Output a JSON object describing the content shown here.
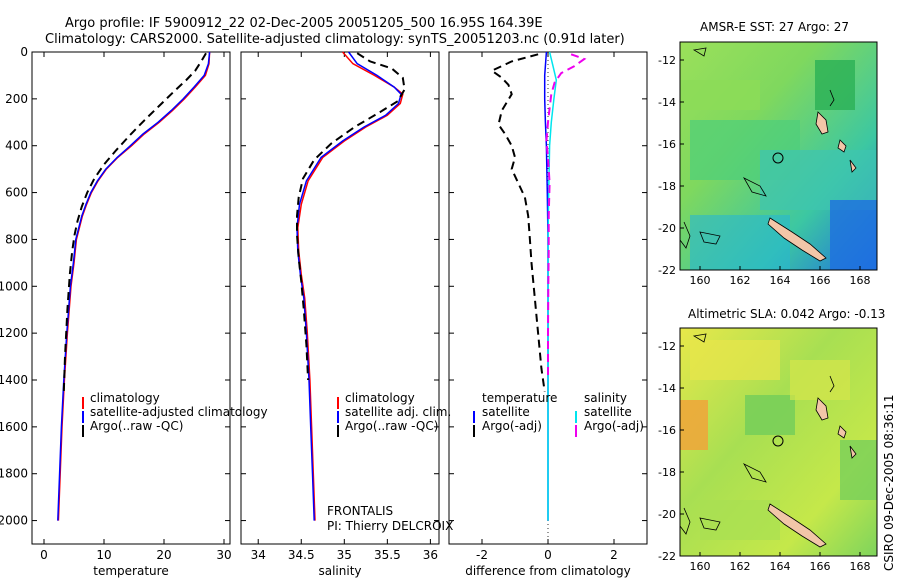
{
  "header": {
    "line1": "Argo profile: IF 5900912_22 02-Dec-2005 20051205_500 16.95S 164.39E",
    "line2": "Climatology: CARS2000. Satellite-adjusted climatology: synTS_20051203.nc (0.91d later)"
  },
  "colors": {
    "climatology": "#ff0000",
    "satellite": "#0000ff",
    "argo": "#000000",
    "sat_diff_temp": "#0000ff",
    "sat_diff_sal": "#00e5ee",
    "argo_diff_sal": "#ee00ee"
  },
  "chart_data": [
    {
      "type": "line",
      "xlabel": "temperature",
      "ylabel": "",
      "xlim": [
        -2,
        31
      ],
      "ylim": [
        2100,
        0
      ],
      "xticks": [
        0,
        10,
        20,
        30
      ],
      "yticks": [
        0,
        200,
        400,
        600,
        800,
        1000,
        1200,
        1400,
        1600,
        1800,
        2000
      ],
      "legend": [
        "climatology",
        "satellite-adjusted climatology",
        "Argo(..raw -QC)"
      ],
      "series": [
        {
          "name": "climatology",
          "color": "#ff0000",
          "dash": "solid",
          "width": 1.5,
          "points": [
            [
              27.6,
              0
            ],
            [
              27.5,
              50
            ],
            [
              26.9,
              100
            ],
            [
              25.2,
              150
            ],
            [
              23.4,
              200
            ],
            [
              21.4,
              250
            ],
            [
              19.2,
              300
            ],
            [
              16.7,
              350
            ],
            [
              14.6,
              400
            ],
            [
              12.3,
              450
            ],
            [
              10.4,
              500
            ],
            [
              9.0,
              550
            ],
            [
              7.9,
              600
            ],
            [
              7.1,
              650
            ],
            [
              6.4,
              700
            ],
            [
              5.9,
              750
            ],
            [
              5.4,
              800
            ],
            [
              5.0,
              900
            ],
            [
              4.5,
              1000
            ],
            [
              3.9,
              1200
            ],
            [
              3.4,
              1400
            ],
            [
              3.0,
              1600
            ],
            [
              2.7,
              1800
            ],
            [
              2.4,
              2000
            ]
          ]
        },
        {
          "name": "satellite-adjusted climatology",
          "color": "#0000ff",
          "dash": "solid",
          "width": 1.5,
          "points": [
            [
              27.6,
              0
            ],
            [
              27.4,
              50
            ],
            [
              26.7,
              100
            ],
            [
              25.0,
              150
            ],
            [
              23.2,
              200
            ],
            [
              21.2,
              250
            ],
            [
              19.0,
              300
            ],
            [
              16.5,
              350
            ],
            [
              14.4,
              400
            ],
            [
              12.2,
              450
            ],
            [
              10.3,
              500
            ],
            [
              8.9,
              550
            ],
            [
              7.8,
              600
            ],
            [
              7.0,
              650
            ],
            [
              6.3,
              700
            ],
            [
              5.8,
              750
            ],
            [
              5.3,
              800
            ],
            [
              4.9,
              900
            ],
            [
              4.4,
              1000
            ],
            [
              3.8,
              1200
            ],
            [
              3.3,
              1400
            ],
            [
              2.9,
              1600
            ],
            [
              2.6,
              1800
            ],
            [
              2.3,
              2000
            ]
          ]
        },
        {
          "name": "Argo(..raw -QC)",
          "color": "#000000",
          "dash": "8,5",
          "width": 2,
          "points": [
            [
              27.0,
              5
            ],
            [
              26.2,
              40
            ],
            [
              25.2,
              80
            ],
            [
              23.7,
              120
            ],
            [
              21.6,
              170
            ],
            [
              19.2,
              230
            ],
            [
              16.8,
              290
            ],
            [
              14.5,
              350
            ],
            [
              12.0,
              420
            ],
            [
              10.0,
              480
            ],
            [
              8.4,
              540
            ],
            [
              7.2,
              600
            ],
            [
              6.3,
              660
            ],
            [
              5.6,
              720
            ],
            [
              5.1,
              780
            ],
            [
              4.7,
              850
            ],
            [
              4.3,
              950
            ],
            [
              3.9,
              1100
            ],
            [
              3.5,
              1300
            ],
            [
              3.3,
              1450
            ]
          ]
        }
      ]
    },
    {
      "type": "line",
      "xlabel": "salinity",
      "ylabel": "",
      "xlim": [
        33.8,
        36.1
      ],
      "ylim": [
        2100,
        0
      ],
      "xticks": [
        34,
        34.5,
        35,
        35.5,
        36
      ],
      "legend": [
        "climatology",
        "satellite adj. clim.",
        "Argo(..raw -QC)"
      ],
      "annotation": [
        "FRONTALIS",
        "PI: Thierry DELCROIX"
      ],
      "series": [
        {
          "name": "climatology",
          "color": "#ff0000",
          "dash": "solid",
          "width": 1.5,
          "points": [
            [
              34.98,
              0
            ],
            [
              35.1,
              50
            ],
            [
              35.35,
              100
            ],
            [
              35.58,
              150
            ],
            [
              35.68,
              180
            ],
            [
              35.65,
              220
            ],
            [
              35.5,
              270
            ],
            [
              35.25,
              320
            ],
            [
              35.0,
              380
            ],
            [
              34.75,
              450
            ],
            [
              34.58,
              550
            ],
            [
              34.5,
              650
            ],
            [
              34.46,
              750
            ],
            [
              34.47,
              850
            ],
            [
              34.5,
              950
            ],
            [
              34.54,
              1050
            ],
            [
              34.57,
              1200
            ],
            [
              34.6,
              1400
            ],
            [
              34.62,
              1600
            ],
            [
              34.64,
              1800
            ],
            [
              34.66,
              2000
            ]
          ]
        },
        {
          "name": "satellite adj. clim.",
          "color": "#0000ff",
          "dash": "solid",
          "width": 1.5,
          "points": [
            [
              35.05,
              0
            ],
            [
              35.15,
              50
            ],
            [
              35.38,
              100
            ],
            [
              35.58,
              150
            ],
            [
              35.66,
              180
            ],
            [
              35.63,
              220
            ],
            [
              35.48,
              270
            ],
            [
              35.23,
              320
            ],
            [
              34.98,
              380
            ],
            [
              34.73,
              450
            ],
            [
              34.56,
              550
            ],
            [
              34.48,
              650
            ],
            [
              34.45,
              750
            ],
            [
              34.46,
              850
            ],
            [
              34.49,
              950
            ],
            [
              34.53,
              1050
            ],
            [
              34.56,
              1200
            ],
            [
              34.59,
              1400
            ],
            [
              34.61,
              1600
            ],
            [
              34.63,
              1800
            ],
            [
              34.65,
              2000
            ]
          ]
        },
        {
          "name": "Argo(..raw -QC)",
          "color": "#000000",
          "dash": "8,5",
          "width": 2,
          "points": [
            [
              35.15,
              5
            ],
            [
              35.3,
              40
            ],
            [
              35.55,
              70
            ],
            [
              35.68,
              110
            ],
            [
              35.7,
              160
            ],
            [
              35.62,
              210
            ],
            [
              35.4,
              260
            ],
            [
              35.12,
              320
            ],
            [
              34.85,
              390
            ],
            [
              34.65,
              460
            ],
            [
              34.52,
              540
            ],
            [
              34.47,
              620
            ],
            [
              34.45,
              700
            ],
            [
              34.45,
              780
            ],
            [
              34.47,
              880
            ],
            [
              34.5,
              980
            ],
            [
              34.53,
              1100
            ],
            [
              34.56,
              1250
            ],
            [
              34.58,
              1400
            ]
          ]
        }
      ]
    },
    {
      "type": "line",
      "xlabel": "difference from climatology",
      "ylabel": "",
      "xlim": [
        -3,
        3
      ],
      "ylim": [
        2100,
        0
      ],
      "xticks": [
        -2,
        0,
        2
      ],
      "legend": [
        "temperature",
        "salinity",
        "satellite",
        "satellite",
        "Argo(-adj)",
        "Argo(-adj)"
      ],
      "series": [
        {
          "name": "satellite",
          "color": "#0000ff",
          "dash": "solid",
          "width": 1.5,
          "points": [
            [
              -0.05,
              0
            ],
            [
              -0.1,
              100
            ],
            [
              -0.1,
              200
            ],
            [
              -0.08,
              300
            ],
            [
              -0.05,
              400
            ],
            [
              -0.02,
              600
            ],
            [
              0.0,
              800
            ],
            [
              0.0,
              1000
            ],
            [
              0.0,
              1500
            ],
            [
              0.0,
              2000
            ]
          ]
        },
        {
          "name": "satellite",
          "color": "#00e5ee",
          "dash": "solid",
          "width": 1.5,
          "points": [
            [
              0.05,
              0
            ],
            [
              0.15,
              60
            ],
            [
              0.25,
              120
            ],
            [
              0.18,
              200
            ],
            [
              0.1,
              300
            ],
            [
              0.05,
              400
            ],
            [
              0.02,
              600
            ],
            [
              0.0,
              800
            ],
            [
              0.0,
              1000
            ],
            [
              0.0,
              1500
            ],
            [
              0.0,
              2000
            ]
          ]
        },
        {
          "name": "Argo(-adj)",
          "color": "#000000",
          "dash": "8,5",
          "width": 2,
          "points": [
            [
              -0.3,
              10
            ],
            [
              -1.1,
              40
            ],
            [
              -1.7,
              80
            ],
            [
              -1.4,
              110
            ],
            [
              -1.2,
              140
            ],
            [
              -1.1,
              180
            ],
            [
              -1.4,
              250
            ],
            [
              -1.5,
              310
            ],
            [
              -1.3,
              350
            ],
            [
              -1.1,
              400
            ],
            [
              -1.0,
              450
            ],
            [
              -1.1,
              500
            ],
            [
              -0.9,
              560
            ],
            [
              -0.7,
              620
            ],
            [
              -0.6,
              700
            ],
            [
              -0.55,
              800
            ],
            [
              -0.5,
              900
            ],
            [
              -0.4,
              1050
            ],
            [
              -0.3,
              1200
            ],
            [
              -0.2,
              1350
            ],
            [
              -0.1,
              1450
            ]
          ]
        },
        {
          "name": "Argo(-adj)",
          "color": "#ee00ee",
          "dash": "8,5",
          "width": 2,
          "points": [
            [
              0.7,
              10
            ],
            [
              1.1,
              30
            ],
            [
              0.8,
              60
            ],
            [
              0.4,
              90
            ],
            [
              0.2,
              130
            ],
            [
              0.1,
              180
            ],
            [
              0.05,
              240
            ],
            [
              0.0,
              300
            ],
            [
              -0.05,
              380
            ],
            [
              0.0,
              450
            ],
            [
              0.05,
              560
            ],
            [
              0.02,
              700
            ],
            [
              0.02,
              850
            ],
            [
              0.01,
              1000
            ],
            [
              0.0,
              1200
            ],
            [
              0.0,
              1400
            ]
          ]
        }
      ]
    }
  ],
  "maps": [
    {
      "title": "AMSR-E SST: 27 Argo: 27",
      "xticks": [
        "160",
        "162",
        "164",
        "166",
        "168"
      ],
      "yticks": [
        "-12",
        "-14",
        "-16",
        "-18",
        "-20",
        "-22"
      ]
    },
    {
      "title": "Altimetric SLA: 0.042 Argo: -0.13",
      "xticks": [
        "160",
        "162",
        "164",
        "166",
        "168"
      ],
      "yticks": [
        "-12",
        "-14",
        "-16",
        "-18",
        "-20",
        "-22"
      ]
    }
  ],
  "footer": {
    "stamp": "CSIRO 09-Dec-2005 08:36:11"
  }
}
